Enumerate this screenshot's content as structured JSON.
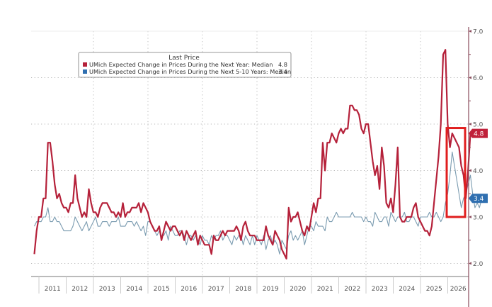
{
  "chart_data": {
    "type": "line",
    "title": "",
    "xlabel": "",
    "ylabel": "",
    "ylim": [
      1.8,
      7.05
    ],
    "y_ticks": [
      2.0,
      3.0,
      4.0,
      5.0,
      6.0,
      7.0
    ],
    "y_tick_labels": [
      "2.0",
      "3.0",
      "4.0",
      "5.0",
      "6.0",
      "7.0"
    ],
    "y_minor_ticks": [
      2.5,
      3.5,
      4.5,
      5.5,
      6.5
    ],
    "x_range": [
      2010.75,
      2026.2
    ],
    "year_labels": [
      "2011",
      "2012",
      "2013",
      "2014",
      "2015",
      "2016",
      "2017",
      "2018",
      "2019",
      "2020",
      "2021",
      "2022",
      "2023",
      "2024",
      "2025",
      "2026"
    ],
    "grid": true,
    "axis_side": "right",
    "legend": {
      "title": "Last Price",
      "placement": "top-left",
      "entries": [
        {
          "label": "UMich Expected Change in Prices During the Next Year: Median",
          "value": "4.8",
          "color": "#b5213a"
        },
        {
          "label": "UMich Expected Change in Prices During the Next 5-10 Years: Median",
          "value": "3.4",
          "color": "#2f6fb0"
        }
      ]
    },
    "last_value_badges": [
      {
        "series": "1yr",
        "label": "4.8",
        "color": "#c0203a"
      },
      {
        "series": "5to10yr",
        "label": "3.4",
        "color": "#2f6fb0"
      }
    ],
    "highlight_box": {
      "x_start": 2025.95,
      "x_end": 2026.2,
      "y_low": 3.0,
      "y_high": 4.9,
      "color": "#e01e1e"
    },
    "x_start": 2010.83,
    "x_step_months": 1,
    "series": [
      {
        "name": "UMich Expected Change in Prices During the Next Year: Median",
        "key": "1yr",
        "color": "#b5213a",
        "values": [
          2.2,
          2.7,
          3.0,
          3.0,
          3.4,
          3.4,
          4.6,
          4.6,
          4.2,
          3.7,
          3.4,
          3.5,
          3.3,
          3.2,
          3.2,
          3.1,
          3.3,
          3.3,
          3.9,
          3.4,
          3.2,
          3.0,
          3.1,
          3.0,
          3.6,
          3.3,
          3.1,
          3.1,
          3.0,
          3.2,
          3.3,
          3.3,
          3.3,
          3.2,
          3.1,
          3.1,
          3.0,
          3.1,
          3.0,
          3.3,
          3.0,
          3.1,
          3.1,
          3.2,
          3.2,
          3.2,
          3.3,
          3.1,
          3.3,
          3.2,
          3.1,
          2.9,
          2.8,
          2.7,
          2.7,
          2.8,
          2.5,
          2.7,
          2.9,
          2.8,
          2.7,
          2.8,
          2.8,
          2.7,
          2.6,
          2.7,
          2.5,
          2.7,
          2.6,
          2.5,
          2.6,
          2.7,
          2.4,
          2.6,
          2.5,
          2.4,
          2.4,
          2.4,
          2.2,
          2.6,
          2.5,
          2.5,
          2.6,
          2.7,
          2.6,
          2.7,
          2.7,
          2.7,
          2.7,
          2.8,
          2.7,
          2.5,
          2.8,
          2.9,
          2.7,
          2.6,
          2.6,
          2.6,
          2.5,
          2.5,
          2.5,
          2.5,
          2.8,
          2.6,
          2.5,
          2.4,
          2.7,
          2.6,
          2.5,
          2.3,
          2.2,
          2.1,
          3.2,
          2.9,
          3.0,
          3.0,
          3.1,
          2.9,
          2.7,
          2.6,
          2.8,
          2.7,
          3.0,
          3.3,
          3.1,
          3.4,
          3.4,
          4.6,
          4.0,
          4.6,
          4.6,
          4.8,
          4.7,
          4.6,
          4.8,
          4.9,
          4.8,
          4.9,
          4.9,
          5.4,
          5.4,
          5.3,
          5.3,
          5.2,
          4.9,
          4.8,
          5.0,
          5.0,
          4.6,
          4.2,
          3.9,
          4.1,
          3.6,
          4.5,
          4.1,
          3.3,
          3.2,
          3.4,
          3.1,
          3.7,
          4.5,
          3.0,
          2.9,
          2.9,
          3.0,
          3.0,
          3.0,
          3.2,
          3.3,
          3.0,
          2.9,
          2.8,
          2.7,
          2.7,
          2.6,
          2.8,
          3.3,
          3.8,
          4.3,
          5.0,
          6.5,
          6.6,
          5.0,
          4.5,
          4.8,
          4.7,
          4.6,
          4.5,
          4.1,
          3.9,
          3.4,
          4.0,
          4.8
        ]
      },
      {
        "name": "UMich Expected Change in Prices During the Next 5-10 Years: Median",
        "key": "5to10yr",
        "color": "#7a9bb0",
        "values": [
          2.8,
          2.9,
          2.9,
          2.9,
          3.0,
          3.0,
          3.2,
          2.9,
          2.9,
          3.0,
          2.9,
          2.9,
          2.8,
          2.7,
          2.7,
          2.7,
          2.7,
          2.8,
          3.0,
          2.9,
          2.8,
          2.7,
          2.8,
          2.9,
          2.7,
          2.8,
          2.9,
          3.0,
          2.8,
          2.8,
          2.9,
          2.9,
          2.9,
          2.8,
          2.9,
          2.9,
          2.9,
          3.0,
          2.8,
          2.8,
          2.8,
          2.9,
          2.9,
          2.9,
          2.8,
          2.9,
          2.8,
          2.7,
          2.8,
          2.6,
          2.9,
          2.9,
          2.8,
          2.7,
          2.6,
          2.7,
          2.6,
          2.6,
          2.7,
          2.5,
          2.8,
          2.7,
          2.6,
          2.6,
          2.7,
          2.7,
          2.6,
          2.4,
          2.6,
          2.6,
          2.5,
          2.6,
          2.5,
          2.4,
          2.6,
          2.5,
          2.5,
          2.4,
          2.6,
          2.5,
          2.6,
          2.6,
          2.7,
          2.5,
          2.6,
          2.6,
          2.5,
          2.4,
          2.6,
          2.5,
          2.6,
          2.6,
          2.4,
          2.6,
          2.5,
          2.4,
          2.6,
          2.4,
          2.6,
          2.5,
          2.4,
          2.6,
          2.3,
          2.5,
          2.6,
          2.4,
          2.5,
          2.4,
          2.2,
          2.5,
          2.4,
          2.3,
          2.6,
          2.7,
          2.5,
          2.6,
          2.5,
          2.6,
          2.7,
          2.4,
          2.6,
          2.8,
          2.8,
          2.7,
          2.9,
          2.8,
          2.8,
          2.8,
          2.7,
          3.0,
          2.9,
          2.9,
          3.0,
          3.1,
          3.0,
          3.0,
          3.0,
          3.0,
          3.0,
          3.0,
          3.1,
          3.0,
          3.0,
          3.0,
          3.0,
          2.9,
          3.0,
          2.9,
          2.9,
          2.8,
          3.1,
          3.0,
          2.9,
          2.9,
          3.0,
          3.0,
          2.8,
          3.1,
          3.0,
          2.9,
          3.0,
          3.0,
          3.0,
          3.1,
          2.9,
          2.9,
          3.0,
          3.0,
          2.9,
          2.8,
          3.0,
          3.0,
          3.0,
          3.0,
          3.1,
          3.0,
          3.0,
          3.1,
          3.0,
          2.9,
          3.0,
          3.3,
          3.5,
          3.9,
          4.4,
          4.1,
          3.8,
          3.5,
          3.2,
          3.4,
          3.5,
          3.7,
          3.9,
          3.5,
          3.2,
          3.3,
          3.2,
          3.4
        ]
      }
    ]
  }
}
